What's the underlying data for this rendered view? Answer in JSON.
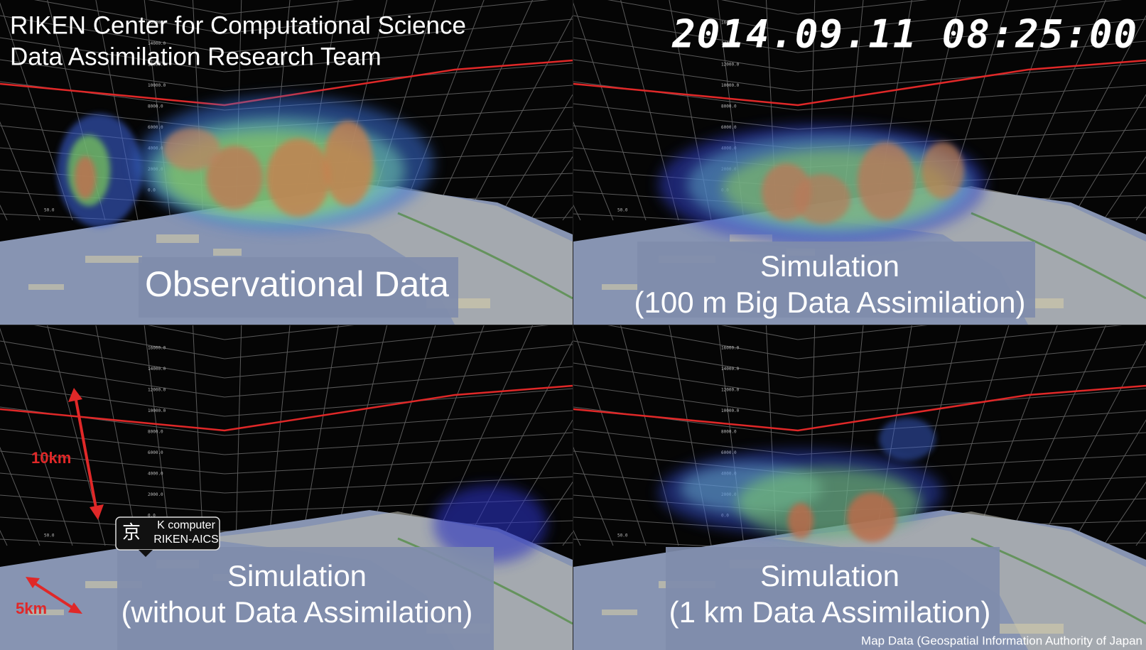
{
  "header": {
    "line1": "RIKEN Center for Computational Science",
    "line2": "Data Assimilation Research Team"
  },
  "timestamp": "2014.09.11 08:25:00",
  "panels": [
    {
      "caption": [
        "Observational Data"
      ]
    },
    {
      "caption": [
        "Simulation",
        "(100 m Big Data Assimilation)"
      ]
    },
    {
      "caption": [
        "Simulation",
        "(without Data Assimilation)"
      ]
    },
    {
      "caption": [
        "Simulation",
        "(1 km Data Assimilation)"
      ]
    }
  ],
  "axis_labels": [
    "16000.0",
    "14000.0",
    "12000.0",
    "10000.0",
    "8000.0",
    "6000.0",
    "4000.0",
    "2000.0",
    "0.0"
  ],
  "ground_label": "50.0",
  "scale": {
    "vertical": "10km",
    "horizontal": "5km"
  },
  "logo": {
    "line1": "K computer",
    "line2": "RIKEN-AICS"
  },
  "credit": "Map Data (Geospatial Information Authority of Japan"
}
